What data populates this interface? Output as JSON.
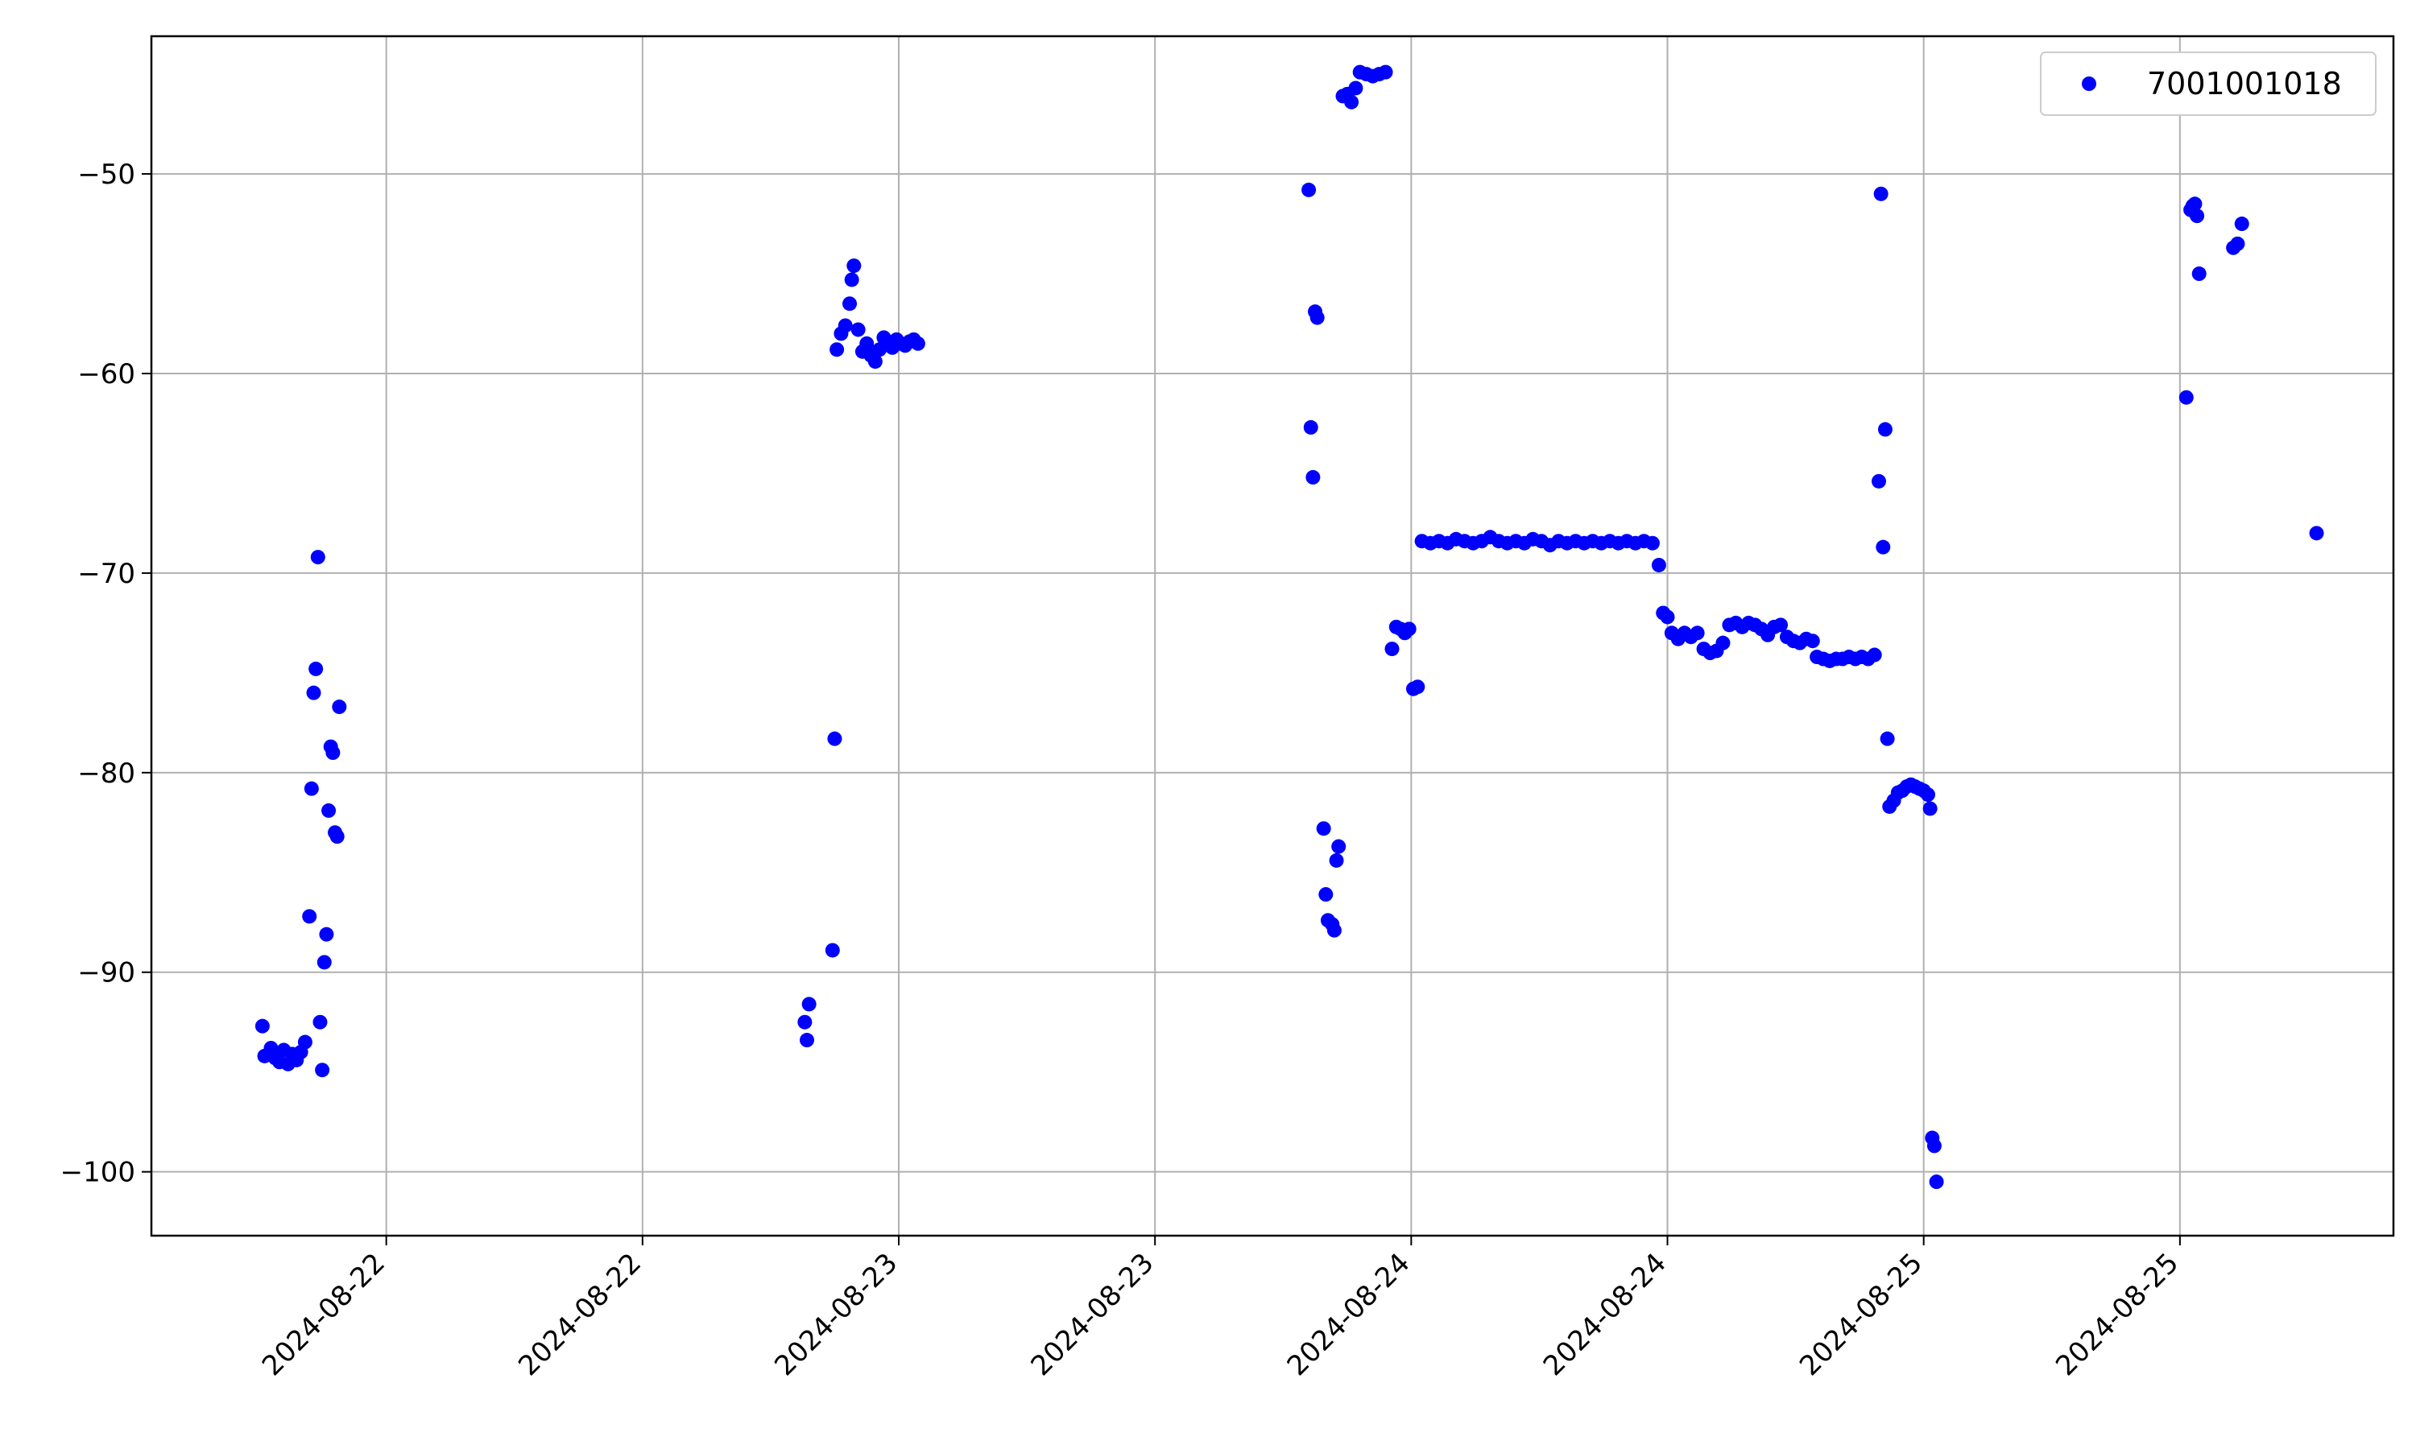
{
  "chart_data": {
    "type": "scatter",
    "title": "",
    "xlabel": "",
    "ylabel": "",
    "grid": true,
    "legend_position": "top-right",
    "x_tick_labels": [
      "2024-08-22",
      "2024-08-22",
      "2024-08-23",
      "2024-08-23",
      "2024-08-24",
      "2024-08-24",
      "2024-08-25",
      "2024-08-25"
    ],
    "x_tick_hours": [
      12,
      24,
      36,
      48,
      60,
      72,
      84,
      96
    ],
    "x_reference_date": "2024-08-21",
    "xlim_hours": [
      1,
      106
    ],
    "yticks": [
      -100,
      -90,
      -80,
      -70,
      -60,
      -50
    ],
    "ylim": [
      -103.2,
      -43.1
    ],
    "series": [
      {
        "name": "7001001018",
        "color": "#0000ff",
        "marker": "dot",
        "points": [
          [
            6.2,
            -92.7
          ],
          [
            6.3,
            -94.2
          ],
          [
            6.6,
            -93.8
          ],
          [
            6.8,
            -94.3
          ],
          [
            7.0,
            -94.5
          ],
          [
            7.2,
            -93.9
          ],
          [
            7.4,
            -94.6
          ],
          [
            7.6,
            -94.1
          ],
          [
            7.8,
            -94.4
          ],
          [
            8.0,
            -94.0
          ],
          [
            8.2,
            -93.5
          ],
          [
            8.4,
            -87.2
          ],
          [
            8.5,
            -80.8
          ],
          [
            8.6,
            -76.0
          ],
          [
            8.7,
            -74.8
          ],
          [
            8.8,
            -69.2
          ],
          [
            8.9,
            -92.5
          ],
          [
            9.0,
            -94.9
          ],
          [
            9.1,
            -89.5
          ],
          [
            9.2,
            -88.1
          ],
          [
            9.3,
            -81.9
          ],
          [
            9.4,
            -78.7
          ],
          [
            9.5,
            -79.0
          ],
          [
            9.6,
            -83.0
          ],
          [
            9.7,
            -83.2
          ],
          [
            9.8,
            -76.7
          ],
          [
            31.6,
            -92.5
          ],
          [
            31.7,
            -93.4
          ],
          [
            31.8,
            -91.6
          ],
          [
            32.9,
            -88.9
          ],
          [
            33.0,
            -78.3
          ],
          [
            33.1,
            -58.8
          ],
          [
            33.3,
            -58.0
          ],
          [
            33.5,
            -57.6
          ],
          [
            33.7,
            -56.5
          ],
          [
            33.8,
            -55.3
          ],
          [
            33.9,
            -54.6
          ],
          [
            34.1,
            -57.8
          ],
          [
            34.3,
            -58.9
          ],
          [
            34.5,
            -58.5
          ],
          [
            34.7,
            -59.1
          ],
          [
            34.9,
            -59.4
          ],
          [
            35.1,
            -58.8
          ],
          [
            35.3,
            -58.2
          ],
          [
            35.5,
            -58.4
          ],
          [
            35.7,
            -58.7
          ],
          [
            35.9,
            -58.3
          ],
          [
            36.1,
            -58.5
          ],
          [
            36.3,
            -58.6
          ],
          [
            36.5,
            -58.4
          ],
          [
            36.7,
            -58.3
          ],
          [
            36.9,
            -58.5
          ],
          [
            55.2,
            -50.8
          ],
          [
            55.3,
            -62.7
          ],
          [
            55.4,
            -65.2
          ],
          [
            55.5,
            -56.9
          ],
          [
            55.6,
            -57.2
          ],
          [
            55.9,
            -82.8
          ],
          [
            56.0,
            -86.1
          ],
          [
            56.1,
            -87.4
          ],
          [
            56.3,
            -87.6
          ],
          [
            56.4,
            -87.9
          ],
          [
            56.5,
            -84.4
          ],
          [
            56.6,
            -83.7
          ],
          [
            56.8,
            -46.1
          ],
          [
            57.0,
            -46.0
          ],
          [
            57.2,
            -46.4
          ],
          [
            57.4,
            -45.7
          ],
          [
            57.6,
            -44.9
          ],
          [
            57.9,
            -45.0
          ],
          [
            58.2,
            -45.1
          ],
          [
            58.5,
            -45.0
          ],
          [
            58.8,
            -44.9
          ],
          [
            59.1,
            -73.8
          ],
          [
            59.3,
            -72.7
          ],
          [
            59.5,
            -72.8
          ],
          [
            59.7,
            -73.0
          ],
          [
            59.9,
            -72.8
          ],
          [
            60.1,
            -75.8
          ],
          [
            60.3,
            -75.7
          ],
          [
            60.5,
            -68.4
          ],
          [
            60.9,
            -68.5
          ],
          [
            61.3,
            -68.4
          ],
          [
            61.7,
            -68.5
          ],
          [
            62.1,
            -68.3
          ],
          [
            62.5,
            -68.4
          ],
          [
            62.9,
            -68.5
          ],
          [
            63.3,
            -68.4
          ],
          [
            63.7,
            -68.2
          ],
          [
            64.1,
            -68.4
          ],
          [
            64.5,
            -68.5
          ],
          [
            64.9,
            -68.4
          ],
          [
            65.3,
            -68.5
          ],
          [
            65.7,
            -68.3
          ],
          [
            66.1,
            -68.4
          ],
          [
            66.5,
            -68.6
          ],
          [
            66.9,
            -68.4
          ],
          [
            67.3,
            -68.5
          ],
          [
            67.7,
            -68.4
          ],
          [
            68.1,
            -68.5
          ],
          [
            68.5,
            -68.4
          ],
          [
            68.9,
            -68.5
          ],
          [
            69.3,
            -68.4
          ],
          [
            69.7,
            -68.5
          ],
          [
            70.1,
            -68.4
          ],
          [
            70.5,
            -68.5
          ],
          [
            70.9,
            -68.4
          ],
          [
            71.3,
            -68.5
          ],
          [
            71.6,
            -69.6
          ],
          [
            71.8,
            -72.0
          ],
          [
            72.0,
            -72.2
          ],
          [
            72.2,
            -73.0
          ],
          [
            72.5,
            -73.3
          ],
          [
            72.8,
            -73.0
          ],
          [
            73.1,
            -73.2
          ],
          [
            73.4,
            -73.0
          ],
          [
            73.7,
            -73.8
          ],
          [
            74.0,
            -74.0
          ],
          [
            74.3,
            -73.9
          ],
          [
            74.6,
            -73.5
          ],
          [
            74.9,
            -72.6
          ],
          [
            75.2,
            -72.5
          ],
          [
            75.5,
            -72.7
          ],
          [
            75.8,
            -72.5
          ],
          [
            76.1,
            -72.6
          ],
          [
            76.4,
            -72.8
          ],
          [
            76.7,
            -73.1
          ],
          [
            77.0,
            -72.7
          ],
          [
            77.3,
            -72.6
          ],
          [
            77.6,
            -73.2
          ],
          [
            77.9,
            -73.4
          ],
          [
            78.2,
            -73.5
          ],
          [
            78.5,
            -73.3
          ],
          [
            78.8,
            -73.4
          ],
          [
            79.0,
            -74.2
          ],
          [
            79.3,
            -74.3
          ],
          [
            79.6,
            -74.4
          ],
          [
            79.9,
            -74.3
          ],
          [
            80.2,
            -74.3
          ],
          [
            80.5,
            -74.2
          ],
          [
            80.8,
            -74.3
          ],
          [
            81.1,
            -74.2
          ],
          [
            81.4,
            -74.3
          ],
          [
            81.7,
            -74.1
          ],
          [
            81.9,
            -65.4
          ],
          [
            82.0,
            -51.0
          ],
          [
            82.1,
            -68.7
          ],
          [
            82.2,
            -62.8
          ],
          [
            82.3,
            -78.3
          ],
          [
            82.4,
            -81.7
          ],
          [
            82.6,
            -81.4
          ],
          [
            82.8,
            -81.0
          ],
          [
            83.0,
            -80.9
          ],
          [
            83.2,
            -80.7
          ],
          [
            83.4,
            -80.6
          ],
          [
            83.6,
            -80.7
          ],
          [
            83.8,
            -80.8
          ],
          [
            84.0,
            -80.9
          ],
          [
            84.2,
            -81.1
          ],
          [
            84.3,
            -81.8
          ],
          [
            84.4,
            -98.3
          ],
          [
            84.5,
            -98.7
          ],
          [
            84.6,
            -100.5
          ],
          [
            96.3,
            -61.2
          ],
          [
            96.5,
            -51.8
          ],
          [
            96.6,
            -51.6
          ],
          [
            96.7,
            -51.5
          ],
          [
            96.8,
            -52.1
          ],
          [
            96.9,
            -55.0
          ],
          [
            98.5,
            -53.7
          ],
          [
            98.7,
            -53.5
          ],
          [
            98.9,
            -52.5
          ],
          [
            102.4,
            -68.0
          ]
        ]
      }
    ]
  }
}
